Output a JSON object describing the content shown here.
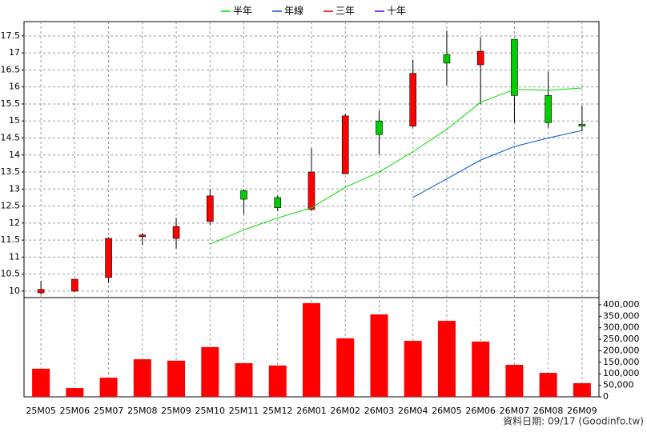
{
  "chart_data": [
    {
      "type": "candlestick",
      "categories": [
        "25M05",
        "25M06",
        "25M07",
        "25M08",
        "25M09",
        "25M10",
        "25M11",
        "25M12",
        "26M01",
        "26M02",
        "26M03",
        "26M04",
        "26M05",
        "26M06",
        "26M07",
        "26M08",
        "26M09"
      ],
      "open": [
        9.95,
        10.0,
        10.4,
        11.6,
        11.55,
        12.05,
        12.95,
        12.75,
        12.4,
        13.45,
        15.0,
        14.85,
        16.95,
        16.65,
        17.4,
        15.75,
        14.9
      ],
      "high": [
        10.3,
        10.35,
        11.58,
        11.7,
        12.15,
        13.0,
        13.0,
        12.8,
        14.2,
        15.2,
        15.3,
        16.8,
        17.65,
        17.45,
        17.4,
        16.45,
        15.45
      ],
      "low": [
        9.9,
        9.98,
        10.25,
        11.35,
        11.25,
        11.95,
        12.25,
        12.35,
        12.35,
        13.45,
        14.0,
        14.8,
        16.05,
        15.5,
        14.95,
        14.8,
        14.7
      ],
      "close": [
        10.05,
        10.35,
        11.55,
        11.65,
        11.9,
        12.8,
        12.7,
        12.45,
        13.5,
        15.15,
        14.6,
        16.4,
        16.7,
        17.05,
        15.75,
        14.95,
        14.85
      ],
      "up_color": "#ff0000",
      "down_color": "#00cc00",
      "series": [
        {
          "name": "半年",
          "color": "#00dd00",
          "values": [
            null,
            null,
            null,
            null,
            null,
            11.38,
            11.8,
            12.15,
            12.45,
            13.05,
            13.5,
            14.1,
            14.75,
            15.55,
            15.93,
            15.9,
            15.97
          ]
        },
        {
          "name": "年線",
          "color": "#0055cc",
          "values": [
            null,
            null,
            null,
            null,
            null,
            null,
            null,
            null,
            null,
            null,
            null,
            12.75,
            13.3,
            13.85,
            14.25,
            14.5,
            14.72
          ]
        },
        {
          "name": "三年",
          "color": "#dd0000",
          "values": [
            null,
            null,
            null,
            null,
            null,
            null,
            null,
            null,
            null,
            null,
            null,
            null,
            null,
            null,
            null,
            null,
            null
          ]
        },
        {
          "name": "十年",
          "color": "#6600cc",
          "values": [
            null,
            null,
            null,
            null,
            null,
            null,
            null,
            null,
            null,
            null,
            null,
            null,
            null,
            null,
            null,
            null,
            null
          ]
        }
      ],
      "ylim": [
        9.81,
        17.92
      ],
      "yticks": [
        10,
        10.5,
        11,
        11.5,
        12,
        12.5,
        13,
        13.5,
        14,
        14.5,
        15,
        15.5,
        16,
        16.5,
        17,
        17.5
      ],
      "grid": true
    },
    {
      "type": "bar",
      "color": "#ff0000",
      "values": [
        122000,
        38000,
        83000,
        163000,
        157000,
        216000,
        146000,
        136000,
        407000,
        254000,
        358000,
        243000,
        330000,
        240000,
        139000,
        104000,
        59000
      ],
      "ylim": [
        0,
        431000
      ],
      "yticks": [
        0,
        {
          "value": 50000,
          "label": "50,000"
        },
        {
          "value": 100000,
          "label": "100,000"
        },
        {
          "value": 150000,
          "label": "150,000"
        },
        {
          "value": 200000,
          "label": "200,000"
        },
        {
          "value": 250000,
          "label": "250,000"
        },
        {
          "value": 300000,
          "label": "300,000"
        },
        {
          "value": 350000,
          "label": "350,000"
        },
        {
          "value": 400000,
          "label": "400,000"
        }
      ],
      "source": "資料日期: 09/17  (Goodinfo.tw)"
    }
  ]
}
